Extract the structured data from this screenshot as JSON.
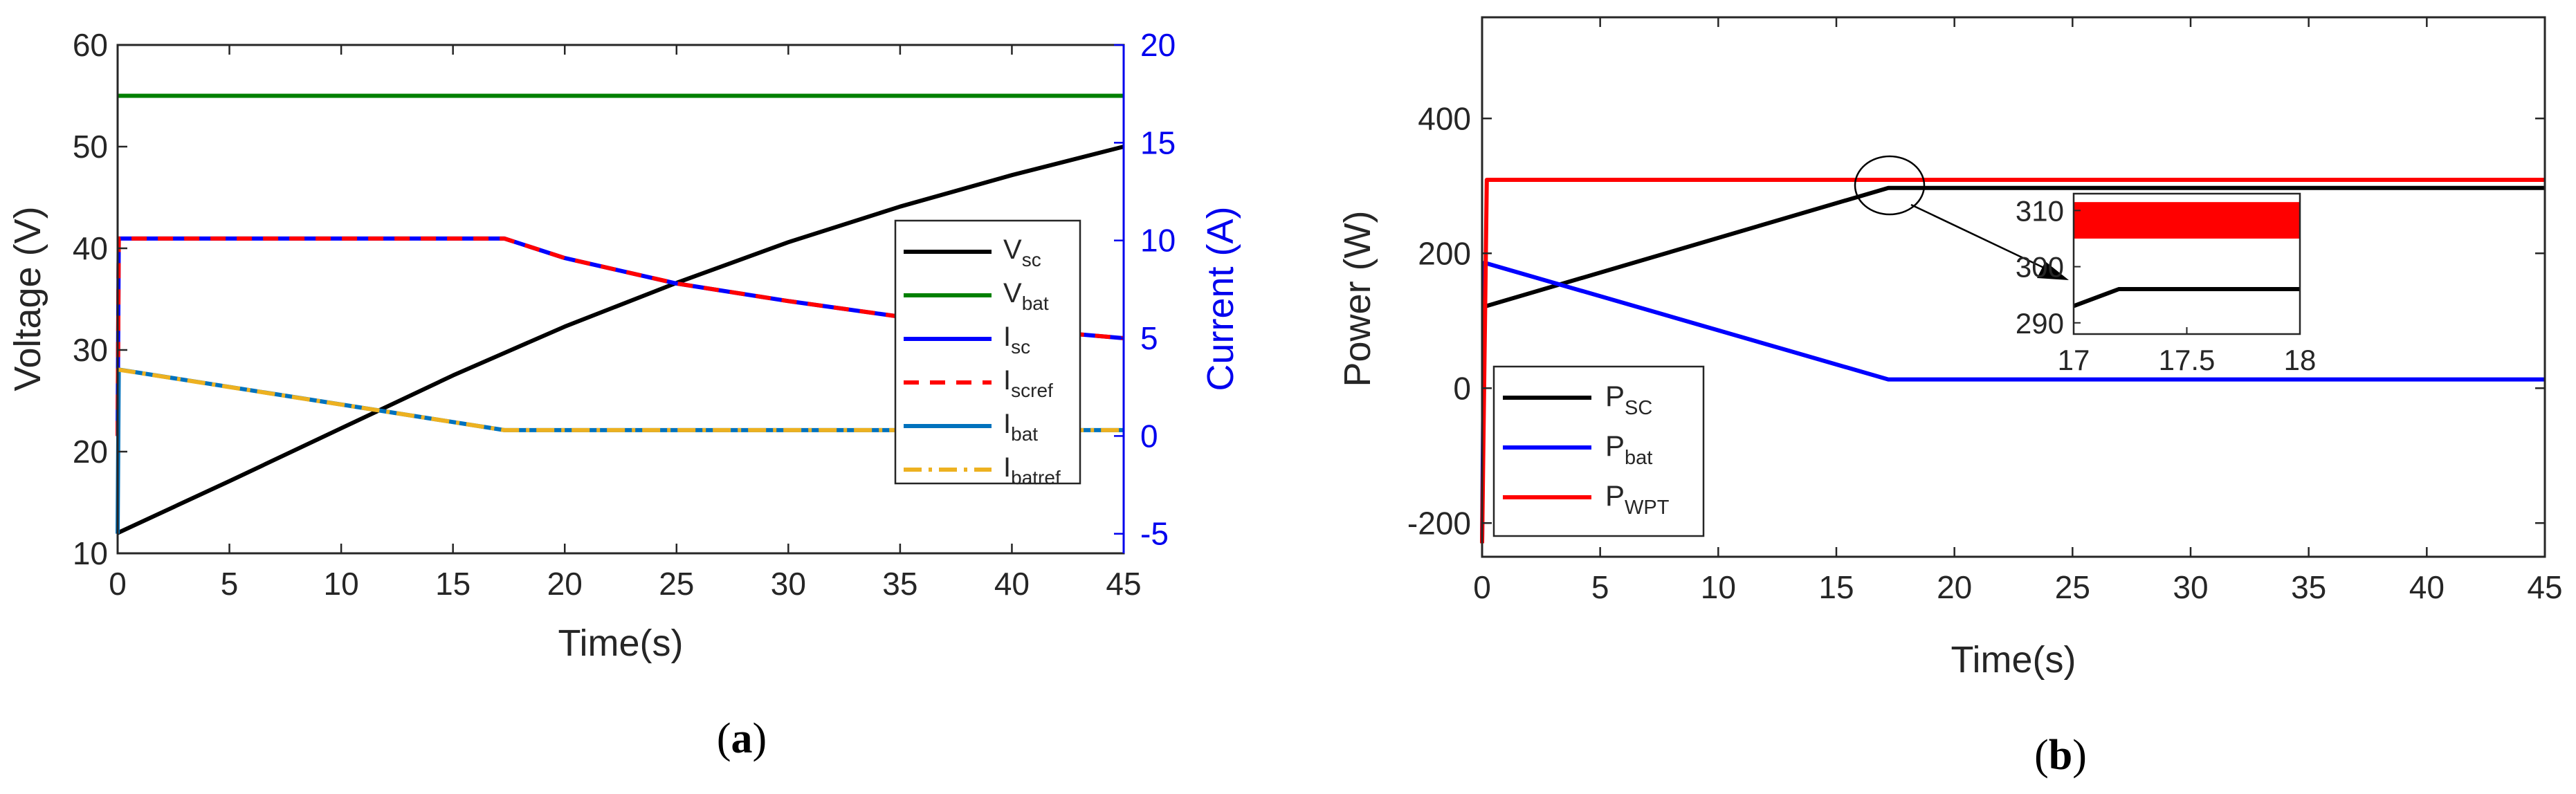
{
  "chart_data": [
    {
      "panel": "a",
      "type": "line",
      "caption_letter": "a",
      "xlabel": "Time(s)",
      "ylabel_left": "Voltage (V)",
      "ylabel_right": "Current (A)",
      "xlim": [
        0,
        45
      ],
      "ylim_left": [
        10,
        60
      ],
      "ylim_right": [
        -6,
        20
      ],
      "xticks": [
        0,
        5,
        10,
        15,
        20,
        25,
        30,
        35,
        40,
        45
      ],
      "yticks_left": [
        10,
        20,
        30,
        40,
        50,
        60
      ],
      "yticks_right": [
        -5,
        0,
        5,
        10,
        15,
        20
      ],
      "colors": {
        "right_axis": "#0000ee"
      },
      "series": [
        {
          "id": "vsc",
          "base": "V",
          "sub": "sc",
          "axis": "left",
          "color": "#000000",
          "dash": "",
          "x": [
            0,
            5,
            10,
            15,
            20,
            25,
            30,
            35,
            40,
            45
          ],
          "y": [
            12,
            17.1,
            22.3,
            27.5,
            32.3,
            36.6,
            40.6,
            44.1,
            47.2,
            50
          ]
        },
        {
          "id": "vbat",
          "base": "V",
          "sub": "bat",
          "axis": "left",
          "color": "#008000",
          "dash": "",
          "x": [
            0,
            45
          ],
          "y": [
            55,
            55
          ]
        },
        {
          "id": "isc",
          "base": "I",
          "sub": "sc",
          "axis": "right",
          "color": "#0000ff",
          "dash": "",
          "x": [
            0,
            0.05,
            17.3,
            20,
            25,
            30,
            35,
            40,
            45
          ],
          "y": [
            0,
            10.1,
            10.1,
            9.1,
            7.8,
            6.9,
            6.1,
            5.5,
            5.0
          ]
        },
        {
          "id": "iscref",
          "base": "I",
          "sub": "scref",
          "axis": "right",
          "color": "#ff0000",
          "dash": "22 16",
          "x": [
            0,
            0.05,
            17.3,
            20,
            25,
            30,
            35,
            40,
            45
          ],
          "y": [
            0,
            10.1,
            10.1,
            9.1,
            7.8,
            6.9,
            6.1,
            5.5,
            5.0
          ]
        },
        {
          "id": "ibat",
          "base": "I",
          "sub": "bat",
          "axis": "right",
          "color": "#0072bd",
          "dash": "",
          "x": [
            0,
            0.05,
            17.3,
            45
          ],
          "y": [
            -5,
            3.4,
            0.3,
            0.3
          ]
        },
        {
          "id": "ibatref",
          "base": "I",
          "sub": "batref",
          "axis": "right",
          "color": "#edb120",
          "dash": "26 10 5 10",
          "x": [
            0,
            17.3,
            45
          ],
          "y": [
            3.4,
            0.3,
            0.3
          ]
        }
      ]
    },
    {
      "panel": "b",
      "type": "line",
      "caption_letter": "b",
      "xlabel": "Time(s)",
      "ylabel": "Power (W)",
      "xlim": [
        0,
        45
      ],
      "ylim": [
        -250,
        550
      ],
      "xticks": [
        0,
        5,
        10,
        15,
        20,
        25,
        30,
        35,
        40,
        45
      ],
      "yticks": [
        -200,
        0,
        200,
        400
      ],
      "series": [
        {
          "id": "psc",
          "base": "P",
          "sub": "SC",
          "color": "#000000",
          "x": [
            0,
            17.2,
            45
          ],
          "y": [
            120,
            297,
            297
          ]
        },
        {
          "id": "pbat",
          "base": "P",
          "sub": "bat",
          "color": "#0000ff",
          "x": [
            0,
            0.1,
            17.2,
            45
          ],
          "y": [
            -230,
            186,
            13,
            13
          ]
        },
        {
          "id": "pwpt",
          "base": "P",
          "sub": "WPT",
          "color": "#ff0000",
          "x": [
            0,
            0.2,
            45
          ],
          "y": [
            -230,
            309,
            309
          ]
        }
      ],
      "annotation": "zoom-in of interval 17–18 s",
      "inset": {
        "xlim": [
          17,
          18
        ],
        "ylim": [
          288,
          313
        ],
        "xticks": [
          "17",
          "17.5",
          "18"
        ],
        "yticks": [
          290,
          300,
          310
        ],
        "series": [
          {
            "id": "inset_pwpt",
            "color": "#ff0000",
            "band": [
              305,
              311.5
            ]
          },
          {
            "id": "inset_psc",
            "color": "#000000",
            "x": [
              17,
              17.2,
              18
            ],
            "y": [
              293,
              296,
              296
            ]
          }
        ]
      }
    }
  ]
}
